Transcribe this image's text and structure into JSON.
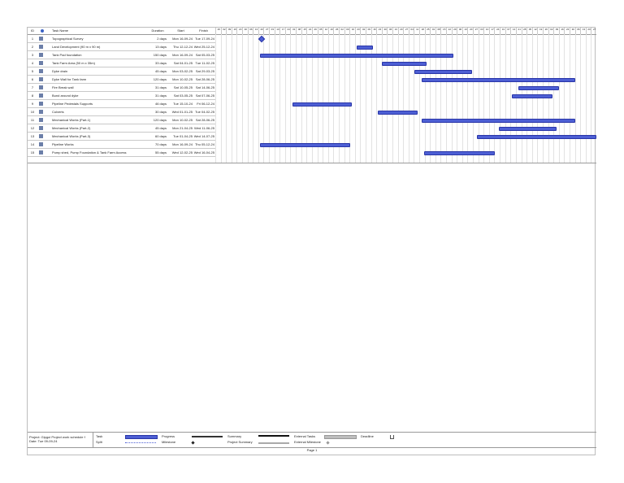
{
  "columns": {
    "id": "ID",
    "indicator": "",
    "name": "Task Name",
    "duration": "Duration",
    "start": "Start",
    "finish": "Finish"
  },
  "timescale": [
    "26",
    "02",
    "09",
    "16",
    "23",
    "30",
    "06",
    "13",
    "20",
    "27",
    "03",
    "10",
    "17",
    "24",
    "01",
    "08",
    "15",
    "22",
    "29",
    "05",
    "12",
    "19",
    "26",
    "02",
    "09",
    "16",
    "23",
    "02",
    "09",
    "16",
    "23",
    "30",
    "06",
    "13",
    "20",
    "27",
    "04",
    "11",
    "18",
    "25",
    "01",
    "08",
    "15",
    "22",
    "29",
    "06",
    "13",
    "20",
    "27",
    "03",
    "10",
    "17",
    "24",
    "31",
    "07",
    "14",
    "21",
    "28",
    "05",
    "12",
    "19",
    "26",
    "02",
    "09",
    "16",
    "23",
    "30",
    "06",
    "13",
    "20",
    "27"
  ],
  "tasks": [
    {
      "id": "1",
      "name": "Topographical Survey",
      "duration": "2 days",
      "start": "Mon 16-09-24",
      "finish": "Tue 17-09-24"
    },
    {
      "id": "2",
      "name": "Land Development (90 m x 90 m)",
      "duration": "13 days",
      "start": "Thu 12-12-24",
      "finish": "Wed 25-12-24"
    },
    {
      "id": "3",
      "name": "Tank Pad foundation",
      "duration": "150 days",
      "start": "Mon 16-09-24",
      "finish": "Sat 05-03-25"
    },
    {
      "id": "4",
      "name": "Tank Farm Area (50 m x 35m)",
      "duration": "33 days",
      "start": "Sat 04-01-25",
      "finish": "Tue 11-02-25"
    },
    {
      "id": "5",
      "name": "Dyke drain",
      "duration": "45 days",
      "start": "Mon 03-02-25",
      "finish": "Sat 29-03-25"
    },
    {
      "id": "6",
      "name": "Dyke Wall for Tank farm",
      "duration": "120 days",
      "start": "Mon 10-02-25",
      "finish": "Sat 28-06-25"
    },
    {
      "id": "7",
      "name": "Fire Break wall",
      "duration": "31 days",
      "start": "Sat 10-05-25",
      "finish": "Sat 14-06-25"
    },
    {
      "id": "8",
      "name": "Bund around dyke",
      "duration": "31 days",
      "start": "Sat 03-05-25",
      "finish": "Sat 07-06-25"
    },
    {
      "id": "9",
      "name": "Pipeline Pedestals Supports",
      "duration": "46 days",
      "start": "Tue 15-10-24",
      "finish": "Fri 06-12-24"
    },
    {
      "id": "10",
      "name": "Culverts",
      "duration": "30 days",
      "start": "Wed 01-01-25",
      "finish": "Tue 04-02-25"
    },
    {
      "id": "11",
      "name": "Mechanical Works (Part-1)",
      "duration": "120 days",
      "start": "Mon 10-02-25",
      "finish": "Sat 28-06-25"
    },
    {
      "id": "12",
      "name": "Mechanical Works (Part-2)",
      "duration": "45 days",
      "start": "Mon 21-04-25",
      "finish": "Wed 11-06-25"
    },
    {
      "id": "13",
      "name": "Mechanical Works (Part-3)",
      "duration": "60 days",
      "start": "Tue 01-04-25",
      "finish": "Wed 14-07-25"
    },
    {
      "id": "14",
      "name": "Pipeline Works",
      "duration": "70 days",
      "start": "Mon 16-09-24",
      "finish": "Thu 05-12-24"
    },
    {
      "id": "15",
      "name": "Pump shed, Pump Foundation & Tank Farm Access",
      "duration": "55 days",
      "start": "Wed 12-02-25",
      "finish": "Wed 16-04-25"
    }
  ],
  "bars": [
    {
      "x0": 0.117,
      "x1": 0.125,
      "milestone": true
    },
    {
      "x0": 0.37,
      "x1": 0.41
    },
    {
      "x0": 0.117,
      "x1": 0.62
    },
    {
      "x0": 0.437,
      "x1": 0.55
    },
    {
      "x0": 0.522,
      "x1": 0.67
    },
    {
      "x0": 0.542,
      "x1": 0.94
    },
    {
      "x0": 0.796,
      "x1": 0.898
    },
    {
      "x0": 0.778,
      "x1": 0.88
    },
    {
      "x0": 0.203,
      "x1": 0.355
    },
    {
      "x0": 0.427,
      "x1": 0.526
    },
    {
      "x0": 0.542,
      "x1": 0.94
    },
    {
      "x0": 0.744,
      "x1": 0.892
    },
    {
      "x0": 0.686,
      "x1": 0.996
    },
    {
      "x0": 0.117,
      "x1": 0.35
    },
    {
      "x0": 0.547,
      "x1": 0.73
    }
  ],
  "footer": {
    "project_line1": "Project: Gipgul Project work schedule f",
    "project_line2": "Date: Tue 09-09-24",
    "legend": {
      "task": "Task",
      "split": "Split",
      "progress": "Progress",
      "milestone": "Milestone",
      "summary": "Summary",
      "project_summary": "Project Summary",
      "external_tasks": "External Tasks",
      "external_milestone": "External Milestone",
      "deadline": "Deadline"
    },
    "page": "Page 1"
  },
  "colors": {
    "task_bar": "#4d5fd4",
    "task_border": "#2a36a8",
    "grid": "#e2e2e2"
  }
}
